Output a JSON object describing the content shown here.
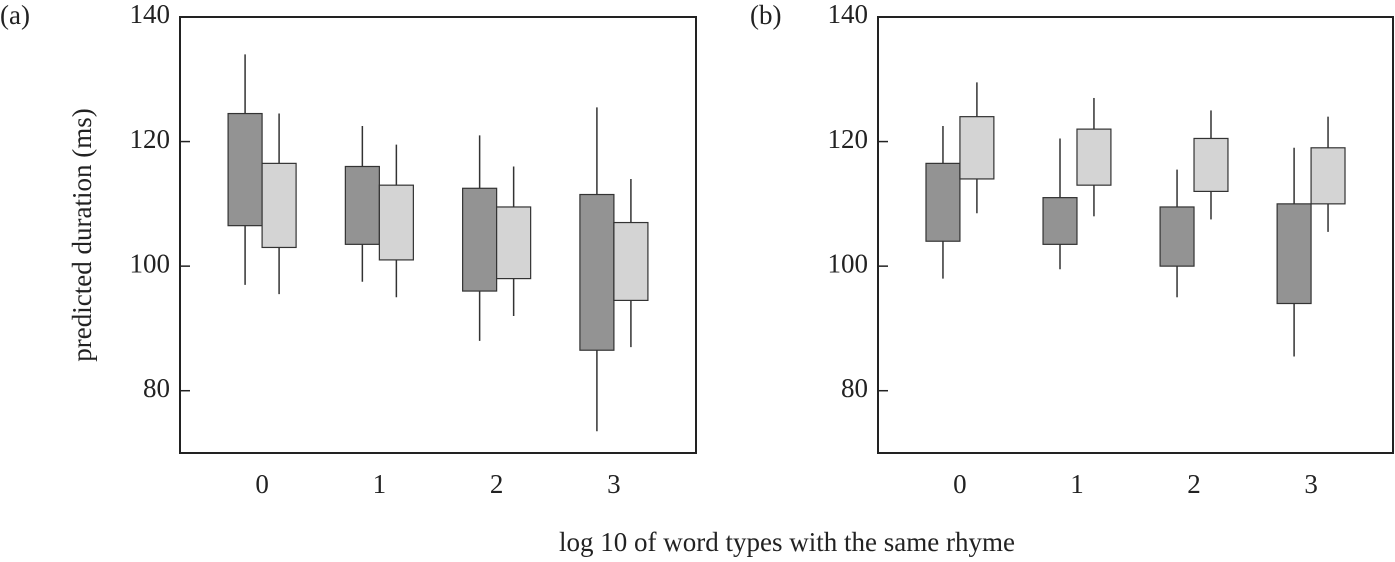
{
  "chart_data": [
    {
      "type": "box",
      "panel_label": "(a)",
      "ylabel": "predicted duration (ms)",
      "xlabel": "log 10 of word types with the same rhyme",
      "x": [
        0,
        1,
        2,
        3
      ],
      "xlim": [
        -0.7,
        3.7
      ],
      "xticks": [
        0,
        1,
        2,
        3
      ],
      "ylim": [
        70,
        140
      ],
      "yticks": [
        80,
        100,
        120,
        140
      ],
      "series": [
        {
          "color": "#939393",
          "low": [
            97,
            97.5,
            88,
            73.5
          ],
          "q1": [
            106.5,
            103.5,
            96,
            86.5
          ],
          "q3": [
            124.5,
            116,
            112.5,
            111.5
          ],
          "high": [
            134,
            122.5,
            121,
            125.5
          ]
        },
        {
          "color": "#d4d4d4",
          "low": [
            95.5,
            95,
            92,
            87
          ],
          "q1": [
            103,
            101,
            98,
            94.5
          ],
          "q3": [
            116.5,
            113,
            109.5,
            107
          ],
          "high": [
            124.5,
            119.5,
            116,
            114
          ]
        }
      ]
    },
    {
      "type": "box",
      "panel_label": "(b)",
      "x": [
        0,
        1,
        2,
        3
      ],
      "xlim": [
        -0.7,
        3.7
      ],
      "xticks": [
        0,
        1,
        2,
        3
      ],
      "ylim": [
        70,
        140
      ],
      "yticks": [
        80,
        100,
        120,
        140
      ],
      "series": [
        {
          "color": "#939393",
          "low": [
            98,
            99.5,
            95,
            85.5
          ],
          "q1": [
            104,
            103.5,
            100,
            94
          ],
          "q3": [
            116.5,
            111,
            109.5,
            110
          ],
          "high": [
            122.5,
            120.5,
            115.5,
            119
          ]
        },
        {
          "color": "#d4d4d4",
          "low": [
            108.5,
            108,
            107.5,
            105.5
          ],
          "q1": [
            114,
            113,
            112,
            110
          ],
          "q3": [
            124,
            122,
            120.5,
            119
          ],
          "high": [
            129.5,
            127,
            125,
            124
          ]
        }
      ]
    }
  ]
}
